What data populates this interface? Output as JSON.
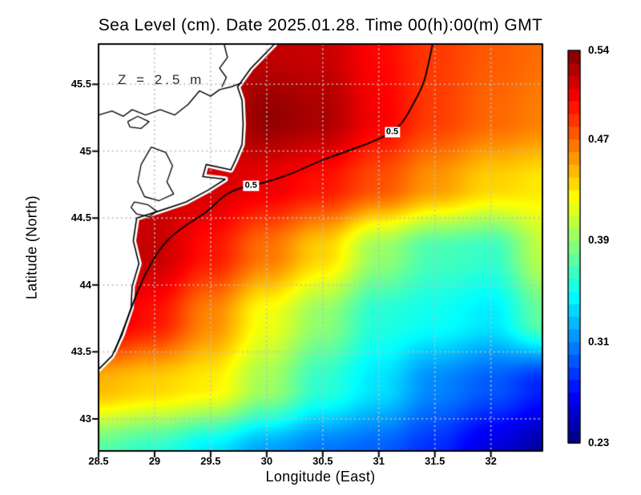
{
  "chart_data": {
    "type": "heatmap",
    "title": "Sea Level (cm). Date 2025.01.28. Time 00(h):00(m) GMT",
    "xlabel": "Longitude (East)",
    "ylabel": "Latitude (North)",
    "annotation": "Z = 2.5 m",
    "xlim": [
      28.5,
      32.46
    ],
    "ylim": [
      42.76,
      45.8
    ],
    "xticks": [
      28.5,
      29,
      29.5,
      30,
      30.5,
      31,
      31.5,
      32
    ],
    "yticks": [
      43,
      43.5,
      44,
      44.5,
      45,
      45.5
    ],
    "grid": true,
    "grid_color": "#bfbfbf",
    "land_color": "#ffffff",
    "coast_color": "#000000",
    "colormap": "jet",
    "colorbar": {
      "min": 0.23,
      "max": 0.54,
      "step": 0.01,
      "ticks": [
        0.54,
        0.47,
        0.39,
        0.31,
        0.23
      ]
    },
    "field": {
      "lon": [
        28.5,
        29.0,
        29.5,
        30.0,
        30.5,
        31.0,
        31.5,
        32.0,
        32.5
      ],
      "lat": [
        45.75,
        45.25,
        44.75,
        44.25,
        43.75,
        43.25,
        42.75
      ],
      "values": [
        [
          0.52,
          0.52,
          0.518,
          0.52,
          0.518,
          0.5,
          0.484,
          0.474,
          0.468
        ],
        [
          0.52,
          0.52,
          0.513,
          0.534,
          0.527,
          0.503,
          0.483,
          0.47,
          0.462
        ],
        [
          0.518,
          0.516,
          0.514,
          0.506,
          0.496,
          0.477,
          0.455,
          0.437,
          0.43
        ],
        [
          0.52,
          0.519,
          0.496,
          0.466,
          0.437,
          0.393,
          0.368,
          0.363,
          0.406
        ],
        [
          0.514,
          0.496,
          0.46,
          0.42,
          0.39,
          0.357,
          0.35,
          0.34,
          0.378
        ],
        [
          0.445,
          0.437,
          0.428,
          0.395,
          0.36,
          0.338,
          0.31,
          0.296,
          0.278
        ],
        [
          0.372,
          0.36,
          0.34,
          0.318,
          0.305,
          0.298,
          0.282,
          0.258,
          0.24
        ]
      ]
    },
    "contour": {
      "level": 0.5,
      "label": "0.5",
      "path": [
        [
          28.64,
          43.5
        ],
        [
          28.7,
          43.62
        ],
        [
          28.78,
          43.8
        ],
        [
          28.86,
          43.98
        ],
        [
          28.97,
          44.17
        ],
        [
          29.1,
          44.33
        ],
        [
          29.28,
          44.45
        ],
        [
          29.48,
          44.55
        ],
        [
          29.6,
          44.66
        ],
        [
          29.74,
          44.72
        ],
        [
          29.86,
          44.74
        ],
        [
          30.05,
          44.78
        ],
        [
          30.25,
          44.84
        ],
        [
          30.45,
          44.92
        ],
        [
          30.65,
          44.98
        ],
        [
          30.85,
          45.04
        ],
        [
          31.0,
          45.09
        ],
        [
          31.12,
          45.14
        ],
        [
          31.22,
          45.22
        ],
        [
          31.3,
          45.34
        ],
        [
          31.4,
          45.5
        ],
        [
          31.44,
          45.64
        ],
        [
          31.48,
          45.8
        ]
      ],
      "labels": [
        {
          "lon": 29.86,
          "lat": 44.74
        },
        {
          "lon": 31.12,
          "lat": 45.14
        }
      ]
    },
    "coastline": {
      "land_polygon": [
        [
          28.5,
          45.8
        ],
        [
          30.07,
          45.8
        ],
        [
          29.86,
          45.62
        ],
        [
          29.74,
          45.48
        ],
        [
          29.78,
          45.38
        ],
        [
          29.79,
          45.2
        ],
        [
          29.78,
          45.05
        ],
        [
          29.72,
          44.93
        ],
        [
          29.68,
          44.86
        ],
        [
          29.46,
          44.9
        ],
        [
          29.43,
          44.81
        ],
        [
          29.63,
          44.79
        ],
        [
          29.48,
          44.71
        ],
        [
          29.28,
          44.62
        ],
        [
          29.03,
          44.55
        ],
        [
          28.84,
          44.5
        ],
        [
          28.81,
          44.33
        ],
        [
          28.86,
          44.16
        ],
        [
          28.8,
          43.99
        ],
        [
          28.79,
          43.83
        ],
        [
          28.71,
          43.63
        ],
        [
          28.62,
          43.47
        ],
        [
          28.5,
          43.37
        ]
      ],
      "inner_lines": [
        [
          [
            28.5,
            45.27
          ],
          [
            28.62,
            45.3
          ],
          [
            28.72,
            45.26
          ],
          [
            28.8,
            45.31
          ],
          [
            28.92,
            45.27
          ],
          [
            29.05,
            45.31
          ],
          [
            29.18,
            45.27
          ],
          [
            29.3,
            45.35
          ],
          [
            29.4,
            45.45
          ],
          [
            29.5,
            45.41
          ],
          [
            29.58,
            45.46
          ],
          [
            29.68,
            45.48
          ],
          [
            29.78,
            45.51
          ]
        ],
        [
          [
            29.62,
            45.8
          ],
          [
            29.65,
            45.7
          ],
          [
            29.58,
            45.62
          ],
          [
            29.64,
            45.55
          ],
          [
            29.6,
            45.48
          ]
        ]
      ],
      "lakes": [
        [
          [
            28.97,
            45.03
          ],
          [
            29.1,
            44.99
          ],
          [
            29.16,
            44.89
          ],
          [
            29.11,
            44.77
          ],
          [
            29.17,
            44.68
          ],
          [
            29.04,
            44.63
          ],
          [
            28.91,
            44.66
          ],
          [
            28.85,
            44.77
          ],
          [
            28.88,
            44.9
          ],
          [
            28.97,
            45.03
          ]
        ],
        [
          [
            28.82,
            44.62
          ],
          [
            28.94,
            44.6
          ],
          [
            29.02,
            44.55
          ],
          [
            28.95,
            44.51
          ],
          [
            28.84,
            44.53
          ],
          [
            28.79,
            44.58
          ],
          [
            28.82,
            44.62
          ]
        ],
        [
          [
            28.76,
            45.22
          ],
          [
            28.85,
            45.26
          ],
          [
            28.95,
            45.22
          ],
          [
            28.88,
            45.17
          ],
          [
            28.78,
            45.18
          ],
          [
            28.76,
            45.22
          ]
        ]
      ]
    }
  }
}
